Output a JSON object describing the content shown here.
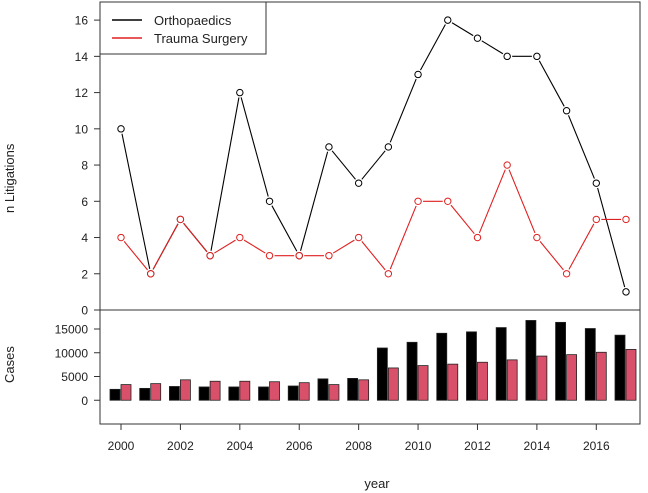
{
  "chart_data": [
    {
      "type": "line",
      "panel": "top",
      "title": "",
      "xlabel": "year",
      "ylabel": "n Litigations",
      "x": [
        2000,
        2001,
        2002,
        2003,
        2004,
        2005,
        2006,
        2007,
        2008,
        2009,
        2010,
        2011,
        2012,
        2013,
        2014,
        2015,
        2016,
        2017
      ],
      "ylim": [
        0,
        17
      ],
      "yticks": [
        "0",
        "2",
        "4",
        "6",
        "8",
        "10",
        "12",
        "14",
        "16"
      ],
      "legend_position": "top-left",
      "series": [
        {
          "name": "Orthopaedics",
          "color": "#000000",
          "values": [
            10,
            2,
            5,
            3,
            12,
            6,
            3,
            9,
            7,
            9,
            13,
            16,
            15,
            14,
            14,
            11,
            7,
            1
          ]
        },
        {
          "name": "Trauma Surgery",
          "color": "#e02020",
          "values": [
            4,
            2,
            5,
            3,
            4,
            3,
            3,
            3,
            4,
            2,
            6,
            6,
            4,
            8,
            4,
            2,
            5,
            5
          ]
        }
      ]
    },
    {
      "type": "bar",
      "panel": "bottom",
      "ylabel": "Cases",
      "xlabel": "year",
      "categories": [
        2000,
        2001,
        2002,
        2003,
        2004,
        2005,
        2006,
        2007,
        2008,
        2009,
        2010,
        2011,
        2012,
        2013,
        2014,
        2015,
        2016,
        2017
      ],
      "ylim": [
        -5000,
        19000
      ],
      "yticks": [
        "0",
        "5000",
        "10000",
        "15000"
      ],
      "xticks": [
        "2000",
        "2002",
        "2004",
        "2006",
        "2008",
        "2010",
        "2012",
        "2014",
        "2016"
      ],
      "series": [
        {
          "name": "Orthopaedics",
          "color": "#000000",
          "values": [
            2300,
            2500,
            2900,
            2800,
            2800,
            2800,
            3000,
            4500,
            4600,
            11000,
            12200,
            14100,
            14400,
            15300,
            16800,
            16400,
            15100,
            13700
          ]
        },
        {
          "name": "Trauma Surgery",
          "color": "#d9506a",
          "values": [
            3300,
            3500,
            4300,
            4000,
            4000,
            3900,
            3700,
            3300,
            4300,
            6800,
            7300,
            7600,
            8000,
            8500,
            9300,
            9600,
            10100,
            10700
          ]
        }
      ]
    }
  ]
}
